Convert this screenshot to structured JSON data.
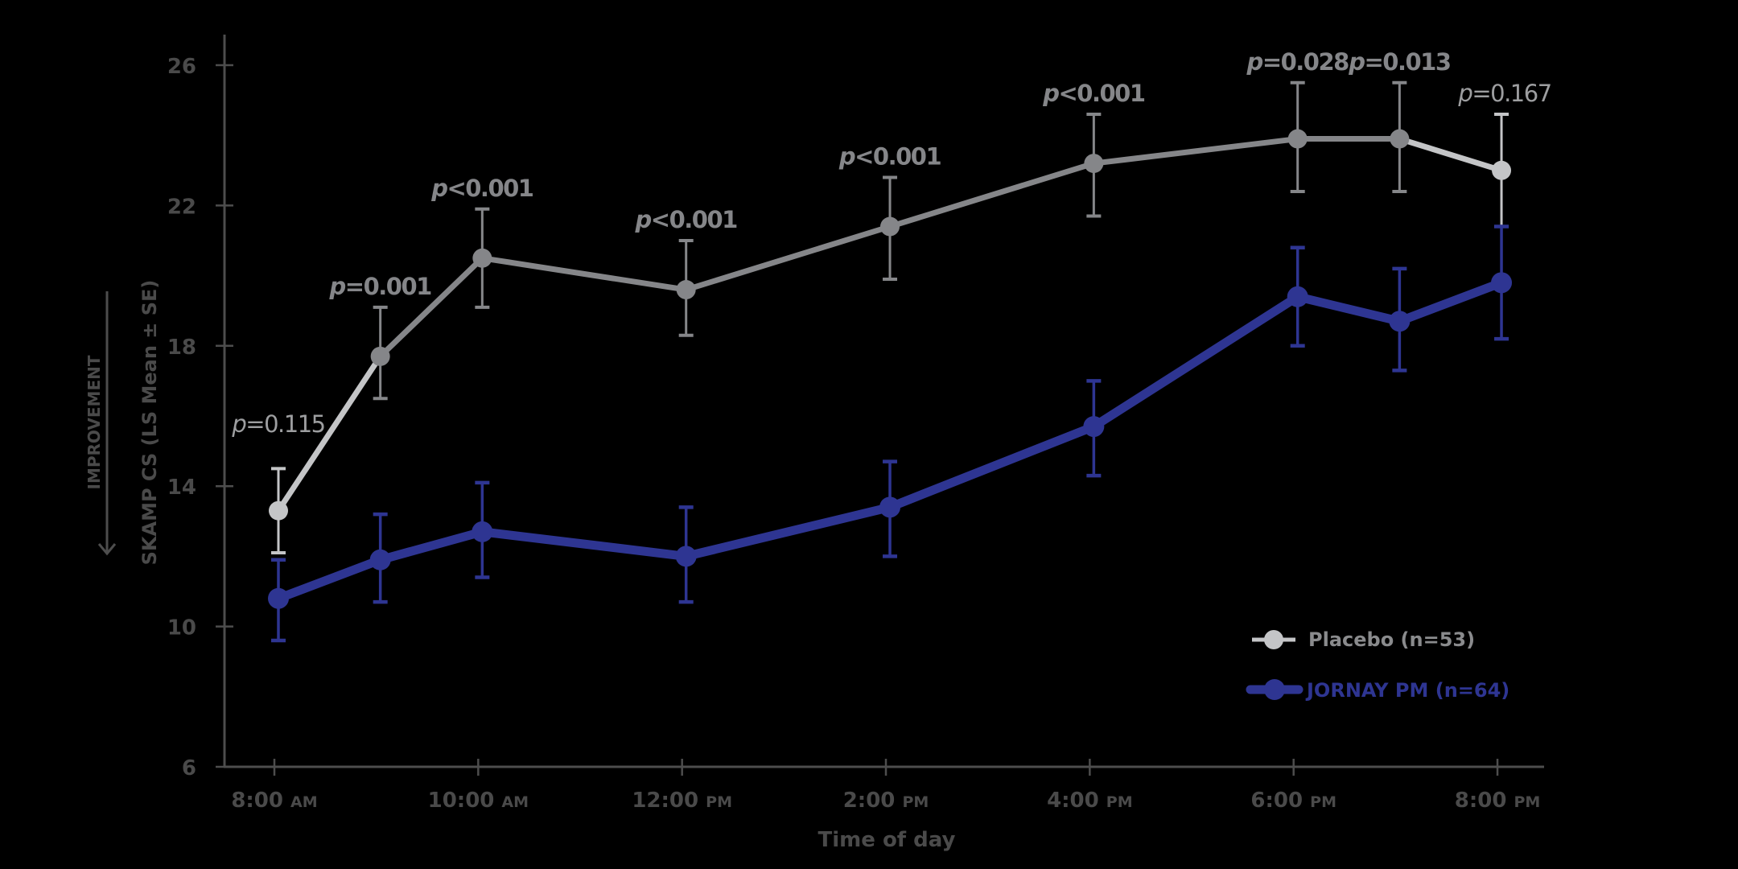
{
  "chart_data": {
    "type": "line",
    "title": "",
    "xlabel": "Time of day",
    "ylabel": "SKAMP CS (LS Mean ± SE)",
    "ylabel_annotation": "IMPROVEMENT",
    "ylabel_annotation_direction": "down",
    "ylim": [
      6,
      27
    ],
    "yticks": [
      6,
      10,
      14,
      18,
      22,
      26
    ],
    "x_hours": [
      8,
      9,
      10,
      12,
      14,
      16,
      18,
      19,
      20
    ],
    "xticks": [
      {
        "hour": 8,
        "main": "8:00",
        "suffix": "AM"
      },
      {
        "hour": 10,
        "main": "10:00",
        "suffix": "AM"
      },
      {
        "hour": 12,
        "main": "12:00",
        "suffix": "PM"
      },
      {
        "hour": 14,
        "main": "2:00",
        "suffix": "PM"
      },
      {
        "hour": 16,
        "main": "4:00",
        "suffix": "PM"
      },
      {
        "hour": 18,
        "main": "6:00",
        "suffix": "PM"
      },
      {
        "hour": 20,
        "main": "8:00",
        "suffix": "PM"
      }
    ],
    "grid": false,
    "legend_position": "lower right",
    "series": [
      {
        "name": "Placebo (n=53)",
        "color": "#858689",
        "color_nonsignificant": "#c4c5c7",
        "values": [
          13.3,
          17.7,
          20.5,
          19.6,
          21.4,
          23.2,
          23.9,
          23.9,
          23.0
        ],
        "se_low": [
          12.1,
          16.5,
          19.1,
          18.3,
          19.9,
          21.7,
          22.4,
          22.4,
          21.4
        ],
        "se_high": [
          14.5,
          19.1,
          21.9,
          21.0,
          22.8,
          24.6,
          25.5,
          25.5,
          24.6
        ]
      },
      {
        "name": "JORNAY PM (n=64)",
        "color": "#2e3592",
        "values": [
          10.8,
          11.9,
          12.7,
          12.0,
          13.4,
          15.7,
          19.4,
          18.7,
          19.8
        ],
        "se_low": [
          9.6,
          10.7,
          11.4,
          10.7,
          12.0,
          14.3,
          18.0,
          17.3,
          18.2
        ],
        "se_high": [
          11.9,
          13.2,
          14.1,
          13.4,
          14.7,
          17.0,
          20.8,
          20.2,
          21.4
        ]
      }
    ],
    "annotations": [
      {
        "hour": 8,
        "label": "p=0.115",
        "p": "p",
        "rest": "=0.115",
        "significant": false
      },
      {
        "hour": 9,
        "label": "p=0.001",
        "p": "p",
        "rest": "=0.001",
        "significant": true
      },
      {
        "hour": 10,
        "label": "p<0.001",
        "p": "p",
        "rest": "<0.001",
        "significant": true
      },
      {
        "hour": 12,
        "label": "p<0.001",
        "p": "p",
        "rest": "<0.001",
        "significant": true
      },
      {
        "hour": 14,
        "label": "p<0.001",
        "p": "p",
        "rest": "<0.001",
        "significant": true
      },
      {
        "hour": 16,
        "label": "p<0.001",
        "p": "p",
        "rest": "<0.001",
        "significant": true
      },
      {
        "hour": 18,
        "label": "p=0.028",
        "p": "p",
        "rest": "=0.028",
        "significant": true
      },
      {
        "hour": 19,
        "label": "p=0.013",
        "p": "p",
        "rest": "=0.013",
        "significant": true
      },
      {
        "hour": 20,
        "label": "p=0.167",
        "p": "p",
        "rest": "=0.167",
        "significant": false
      }
    ]
  },
  "legend": {
    "placebo": {
      "label": "Placebo (n=53)",
      "marker_color": "#c4c5c7",
      "text_color": "#8a8b8d"
    },
    "jornay": {
      "label": "JORNAY PM (n=64)",
      "marker_color": "#2e3592",
      "text_color": "#2e3592"
    }
  },
  "axes": {
    "x_title": "Time of day",
    "y_title": "SKAMP CS (LS Mean ± SE)",
    "y_annotation": "IMPROVEMENT"
  }
}
